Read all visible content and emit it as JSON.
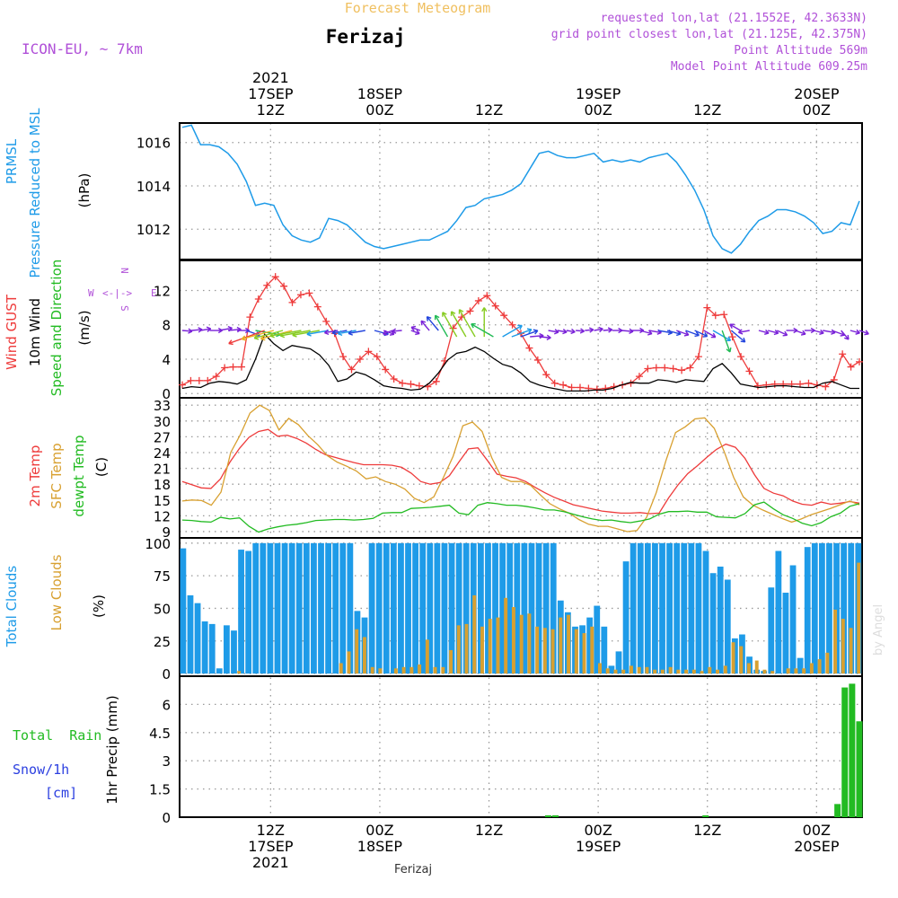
{
  "header": {
    "title": "Forecast Meteogram",
    "location": "Ferizaj",
    "model": "ICON-EU, ~ 7km",
    "requested": "requested lon,lat (21.1552E, 42.3633N)",
    "grid": "grid point closest lon,lat (21.125E, 42.375N)",
    "point_alt": "Point Altitude 569m",
    "model_alt": "Model Point Altitude 609.25m",
    "footer": "Ferizaj",
    "credit": "by Angel"
  },
  "top_axis": {
    "year": "2021",
    "ticks": [
      {
        "h": 16,
        "l1": "17SEP",
        "l2": "12Z"
      },
      {
        "h": 28,
        "l1": "18SEP",
        "l2": "00Z"
      },
      {
        "h": 40,
        "l1": "",
        "l2": "12Z"
      },
      {
        "h": 52,
        "l1": "19SEP",
        "l2": "00Z"
      },
      {
        "h": 64,
        "l1": "",
        "l2": "12Z"
      },
      {
        "h": 76,
        "l1": "20SEP",
        "l2": "00Z"
      }
    ]
  },
  "bottom_axis": {
    "year": "2021",
    "ticks": [
      {
        "h": 16,
        "l1": "12Z",
        "l2": "17SEP"
      },
      {
        "h": 28,
        "l1": "00Z",
        "l2": "18SEP"
      },
      {
        "h": 40,
        "l1": "12Z",
        "l2": ""
      },
      {
        "h": 52,
        "l1": "00Z",
        "l2": "19SEP"
      },
      {
        "h": 64,
        "l1": "12Z",
        "l2": ""
      },
      {
        "h": 76,
        "l1": "00Z",
        "l2": "20SEP"
      }
    ]
  },
  "compass": {
    "n": "N",
    "s": "S",
    "w": "W",
    "e": "E",
    "arrows": "<-|->"
  },
  "colors": {
    "pressure": "#1e9be8",
    "gust": "#ee3b3b",
    "wind": "#000000",
    "green": "#22bb22",
    "violet": "#b050d8",
    "orange": "#d8a030",
    "blue_text": "#2b3fe0",
    "title": "#f0c060"
  },
  "chart_data": [
    {
      "type": "line",
      "panel": "pressure",
      "ylabel_lines": [
        "PRMSL",
        "Pressure Reduced to MSL",
        "(hPa)"
      ],
      "yticks": [
        "1012",
        "1014",
        "1016"
      ],
      "ylim": [
        1010.6,
        1016.9
      ],
      "x_hours_start": 16,
      "series": [
        {
          "values": [
            1016.7,
            1016.8,
            1015.9,
            1015.9,
            1015.8,
            1015.5,
            1015,
            1014.2,
            1013.1,
            1013.2,
            1013.1,
            1012.2,
            1011.7,
            1011.5,
            1011.4,
            1011.6,
            1012.5,
            1012.4,
            1012.2,
            1011.8,
            1011.4,
            1011.2,
            1011.1,
            1011.2,
            1011.3,
            1011.4,
            1011.5,
            1011.5,
            1011.7,
            1011.9,
            1012.4,
            1013,
            1013.1,
            1013.4,
            1013.5,
            1013.6,
            1013.8,
            1014.1,
            1014.8,
            1015.5,
            1015.6,
            1015.4,
            1015.3,
            1015.3,
            1015.4,
            1015.5,
            1015.1,
            1015.2,
            1015.1,
            1015.2,
            1015.1,
            1015.3,
            1015.4,
            1015.5,
            1015.1,
            1014.5,
            1013.8,
            1012.9,
            1011.7,
            1011.1,
            1010.9,
            1011.3,
            1011.9,
            1012.4,
            1012.6,
            1012.9,
            1012.9,
            1012.8,
            1012.6,
            1012.3,
            1011.8,
            1011.9,
            1012.3,
            1012.2,
            1013.3
          ]
        }
      ]
    },
    {
      "type": "line",
      "panel": "wind",
      "ylabel_lines": [
        "Wind GUST",
        "10m Wind",
        "Speed and Direction",
        "(m/s)"
      ],
      "yticks": [
        "0",
        "4",
        "8",
        "12"
      ],
      "ylim": [
        -0.5,
        15.5
      ],
      "series": [
        {
          "values": [
            1,
            1.5,
            1.5,
            1.5,
            2,
            3,
            3.1,
            3.1,
            8.9,
            11,
            12.6,
            13.6,
            12.5,
            10.6,
            11.5,
            11.7,
            10.1,
            8.4,
            7,
            4.3,
            2.8,
            4,
            4.9,
            4.3,
            2.8,
            1.7,
            1.2,
            1.1,
            0.9,
            0.8,
            1.4,
            3.8,
            7.6,
            8.9,
            9.6,
            10.8,
            11.4,
            10.2,
            9.1,
            8,
            7,
            5.3,
            3.9,
            2.2,
            1.2,
            1,
            0.7,
            0.7,
            0.6,
            0.5,
            0.6,
            0.8,
            1,
            1.2,
            2,
            2.9,
            3,
            3,
            2.9,
            2.7,
            3,
            4.3,
            10,
            9.1,
            9.2,
            6.6,
            4.3,
            2.6,
            0.9,
            1,
            1.1,
            1.1,
            1.1,
            1.1,
            1.2,
            1,
            0.8,
            1.6,
            4.6,
            3.1,
            3.7
          ]
        },
        {
          "values": [
            0.6,
            0.8,
            0.7,
            1.2,
            1.4,
            1.3,
            1.1,
            1.6,
            4,
            6.9,
            5.8,
            5,
            5.6,
            5.4,
            5.2,
            4.5,
            3.3,
            1.4,
            1.7,
            2.5,
            2.2,
            1.6,
            0.9,
            0.7,
            0.6,
            0.4,
            0.5,
            1.2,
            2.4,
            3.9,
            4.7,
            4.9,
            5.4,
            4.9,
            4.1,
            3.4,
            3.1,
            2.4,
            1.4,
            1,
            0.7,
            0.5,
            0.3,
            0.3,
            0.3,
            0.4,
            0.4,
            0.6,
            1,
            1.3,
            1.2,
            1.2,
            1.6,
            1.5,
            1.3,
            1.6,
            1.5,
            1.4,
            2.9,
            3.5,
            2.4,
            1.1,
            0.9,
            0.7,
            0.8,
            0.9,
            0.9,
            0.8,
            0.7,
            0.7,
            1.2,
            1.4,
            1,
            0.6,
            0.6
          ]
        }
      ],
      "barbs": {
        "dir_deg": [
          275,
          265,
          260,
          270,
          260,
          265,
          270,
          290,
          280,
          70,
          75,
          75,
          75,
          80,
          80,
          80,
          80,
          80,
          80,
          80,
          80,
          285,
          290,
          70,
          85,
          290,
          110,
          140,
          140,
          150,
          150,
          150,
          150,
          180,
          120,
          240,
          250,
          250,
          265,
          275,
          280,
          280,
          280,
          275,
          265,
          260,
          265,
          270,
          275,
          270,
          285,
          280,
          280,
          285,
          290,
          290,
          295,
          300,
          300,
          340,
          310,
          120,
          80,
          285,
          285,
          295,
          270,
          290,
          270,
          285,
          280,
          290,
          320,
          285,
          290
        ]
      }
    },
    {
      "type": "line",
      "panel": "temperature",
      "ylabel_lines": [
        "2m Temp",
        "SFC Temp",
        "dewpt Temp",
        "(C)"
      ],
      "yticks": [
        "9",
        "12",
        "15",
        "18",
        "21",
        "24",
        "27",
        "30",
        "33"
      ],
      "ylim": [
        7.8,
        34.4
      ],
      "series": [
        {
          "values": [
            18.5,
            17.9,
            17.3,
            17.2,
            19,
            22.2,
            24.8,
            26.9,
            28,
            28.4,
            27.1,
            27.3,
            26.7,
            25.8,
            24.6,
            23.6,
            23.1,
            22.6,
            22.1,
            21.7,
            21.7,
            21.7,
            21.6,
            21.2,
            20.1,
            18.5,
            18,
            18.3,
            19.6,
            22.2,
            24.7,
            24.9,
            22.5,
            19.9,
            19.5,
            19.2,
            18.5,
            17.4,
            16.4,
            15.5,
            14.8,
            14.1,
            13.7,
            13.3,
            12.9,
            12.7,
            12.5,
            12.5,
            12.6,
            12.4,
            12.5,
            15.4,
            17.9,
            20,
            21.5,
            23.1,
            24.6,
            25.6,
            25,
            22.9,
            19.8,
            17.2,
            16.3,
            15.8,
            14.8,
            14.2,
            14,
            14.6,
            14.2,
            14.4,
            14.7,
            14.4
          ]
        },
        {
          "values": [
            14.8,
            15,
            14.9,
            14,
            16.5,
            24,
            27.4,
            31.5,
            33,
            32,
            28.3,
            30.5,
            29.3,
            27.2,
            25.5,
            23.4,
            22.2,
            21.4,
            20.5,
            19,
            19.4,
            18.5,
            18,
            17.1,
            15.3,
            14.5,
            15.6,
            19.3,
            23.3,
            29.1,
            29.8,
            28,
            23,
            19.3,
            18.5,
            18.5,
            17.8,
            16,
            14.3,
            13.3,
            12.5,
            11.3,
            10.4,
            10,
            10,
            9.5,
            9,
            9.2,
            11.7,
            16.4,
            22.5,
            27.8,
            28.9,
            30.4,
            30.6,
            28.6,
            24.3,
            19.3,
            15.6,
            14,
            13.1,
            12.3,
            11.5,
            10.8,
            11.4,
            12.2,
            12.8,
            13.4,
            14.1,
            14.8,
            14.1
          ]
        },
        {
          "values": [
            11.2,
            11.1,
            10.9,
            10.8,
            11.7,
            11.4,
            11.6,
            10,
            8.9,
            9.5,
            9.9,
            10.2,
            10.4,
            10.7,
            11.1,
            11.2,
            11.3,
            11.3,
            11.2,
            11.3,
            11.5,
            12.5,
            12.6,
            12.6,
            13.4,
            13.5,
            13.6,
            13.8,
            14,
            12.5,
            12.2,
            14,
            14.5,
            14.3,
            14,
            14,
            13.8,
            13.5,
            13.1,
            13.1,
            12.8,
            12.3,
            11.8,
            11.4,
            11.1,
            11.2,
            10.9,
            10.7,
            11,
            11.4,
            12.3,
            12.8,
            12.8,
            12.9,
            12.7,
            12.7,
            11.8,
            11.7,
            11.6,
            12.4,
            14.1,
            14.6,
            13.3,
            12.2,
            11.5,
            10.6,
            10.1,
            10.7,
            11.8,
            12.5,
            13.8,
            14.3
          ]
        }
      ]
    },
    {
      "type": "bar",
      "panel": "clouds",
      "ylabel_lines": [
        "Total Clouds",
        "Low Clouds",
        "(%)"
      ],
      "yticks": [
        "0",
        "25",
        "50",
        "75",
        "100"
      ],
      "ylim": [
        -2,
        104
      ],
      "series": [
        {
          "values": [
            96,
            60,
            54,
            40,
            38,
            4,
            37,
            33,
            95,
            94,
            100,
            100,
            100,
            100,
            100,
            100,
            100,
            100,
            100,
            100,
            100,
            100,
            100,
            100,
            48,
            43,
            100,
            100,
            100,
            100,
            100,
            100,
            100,
            100,
            100,
            100,
            100,
            100,
            100,
            100,
            100,
            100,
            100,
            100,
            100,
            100,
            100,
            100,
            100,
            100,
            100,
            100,
            56,
            47,
            36,
            37,
            43,
            52,
            36,
            6,
            17,
            86,
            100,
            100,
            100,
            100,
            100,
            100,
            100,
            100,
            100,
            100,
            94,
            77,
            82,
            72,
            27,
            30,
            13,
            3,
            2,
            66,
            94,
            62,
            83,
            12,
            97,
            100,
            100,
            100,
            100,
            100,
            100,
            100
          ]
        },
        {
          "values": [
            0,
            0,
            0,
            0,
            0,
            0,
            0,
            2,
            0,
            0,
            0,
            0,
            0,
            0,
            0,
            0,
            0,
            0,
            0,
            0,
            8,
            17,
            34,
            28,
            5,
            4,
            0,
            4,
            5,
            5,
            7,
            26,
            5,
            5,
            18,
            37,
            38,
            60,
            36,
            42,
            43,
            58,
            51,
            45,
            46,
            36,
            35,
            34,
            43,
            45,
            34,
            31,
            36,
            8,
            4,
            3,
            3,
            6,
            5,
            5,
            3,
            3,
            5,
            3,
            3,
            3,
            2,
            5,
            3,
            6,
            24,
            21,
            8,
            10,
            3,
            2,
            0,
            4,
            4,
            4,
            8,
            11,
            16,
            49,
            42,
            35,
            85
          ]
        }
      ]
    },
    {
      "type": "bar",
      "panel": "precipitation",
      "ylabel_lines": [
        "Total  Rain",
        "Snow/1h",
        "[cm]",
        "1hr Precip (mm)"
      ],
      "yticks": [
        "0",
        "1.5",
        "3",
        "4.5",
        "6"
      ],
      "ylim": [
        0,
        7.5
      ],
      "points": [
        [
          46.5,
          0.1
        ],
        [
          47.3,
          0.1
        ],
        [
          63.8,
          0.1
        ],
        [
          78.3,
          0.7
        ],
        [
          79.1,
          6.9
        ],
        [
          79.9,
          7.1
        ],
        [
          80.7,
          5.1
        ]
      ]
    }
  ]
}
